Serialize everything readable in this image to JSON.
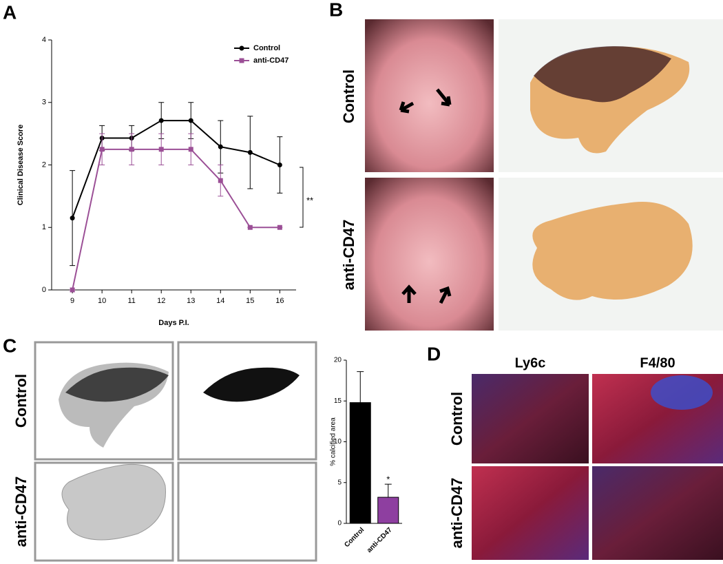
{
  "panel_labels": [
    "A",
    "B",
    "C",
    "D"
  ],
  "panel_b": {
    "rows": [
      "Control",
      "anti-CD47"
    ]
  },
  "panel_c": {
    "rows": [
      "Control",
      "anti-CD47"
    ]
  },
  "panel_d": {
    "columns": [
      "Ly6c",
      "F4/80"
    ],
    "rows": [
      "Control",
      "anti-CD47"
    ]
  },
  "chart_data": [
    {
      "type": "line",
      "xlabel": "Days P.I.",
      "ylabel": "Clinical Disease Score",
      "x": [
        9,
        10,
        11,
        12,
        13,
        14,
        15,
        16
      ],
      "xlim": [
        8.3,
        16.55
      ],
      "xticks": [
        9,
        10,
        11,
        12,
        13,
        14,
        15,
        16
      ],
      "ylim": [
        0,
        4
      ],
      "yticks": [
        0,
        1,
        2,
        3,
        4
      ],
      "legend": "upper right",
      "annotation": "**",
      "series": [
        {
          "name": "Control",
          "color": "#000000",
          "marker": "circle",
          "values": [
            1.15,
            2.43,
            2.43,
            2.71,
            2.71,
            2.29,
            2.2,
            2.0
          ],
          "errors": [
            0.76,
            0.2,
            0.2,
            0.29,
            0.29,
            0.42,
            0.58,
            0.45
          ]
        },
        {
          "name": "anti-CD47",
          "color": "#9b4f96",
          "marker": "square",
          "values": [
            0,
            2.25,
            2.25,
            2.25,
            2.25,
            1.75,
            1.0,
            1.0
          ],
          "errors": [
            0,
            0.25,
            0.25,
            0.25,
            0.25,
            0.25,
            0,
            0
          ]
        }
      ]
    },
    {
      "type": "bar",
      "ylabel": "% calcified area",
      "categories": [
        "Control",
        "anti-CD47"
      ],
      "values": [
        14.8,
        3.2
      ],
      "errors": [
        3.8,
        1.6
      ],
      "colors": [
        "#000000",
        "#8e3fa0"
      ],
      "ylim": [
        0,
        20
      ],
      "yticks": [
        0,
        5,
        10,
        15,
        20
      ],
      "annotation": "*"
    }
  ]
}
